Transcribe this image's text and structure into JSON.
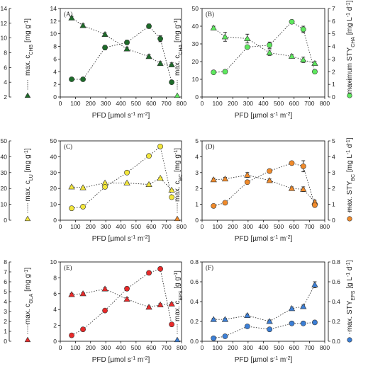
{
  "chart_data": [
    {
      "type": "scatter",
      "panel": "(A)",
      "xlabel": "PFD [µmol s-1 m-2]",
      "x_ticks": [
        0,
        100,
        200,
        300,
        400,
        500,
        600,
        700,
        800
      ],
      "xlim": [
        0,
        800
      ],
      "left_axis": {
        "label": "max. c_CHB [mg g-1]",
        "ylim": [
          0,
          14
        ],
        "ticks": [
          0,
          2,
          4,
          6,
          8,
          10,
          12,
          14
        ]
      },
      "right_axis": {
        "label": "max. STY_CHB [mg L-1 d-1]",
        "ylim": [
          2,
          14
        ],
        "ticks": [
          2,
          4,
          6,
          8,
          10,
          12,
          14
        ],
        "side": "outer-left"
      },
      "color": "#1e6b2a",
      "series": [
        {
          "axis": "left",
          "marker": "triangle",
          "x": [
            75,
            150,
            295,
            440,
            585,
            660,
            735
          ],
          "y": [
            12.5,
            11.3,
            9.9,
            7.6,
            6.4,
            5.3,
            5.1
          ],
          "err": [
            0.25,
            0.25,
            0.25,
            0.3,
            0.3,
            0.3,
            0.3
          ]
        },
        {
          "axis": "right",
          "marker": "circle",
          "x": [
            75,
            150,
            295,
            440,
            585,
            660,
            735
          ],
          "y": [
            4.4,
            4.4,
            8.7,
            9.4,
            11.6,
            9.9,
            4.0
          ],
          "err": [
            0.2,
            0.2,
            0.3,
            0.3,
            0.3,
            0.4,
            0.2
          ]
        }
      ]
    },
    {
      "type": "scatter",
      "panel": "(B)",
      "xlabel": "PFD [µmol s-1 m-2]",
      "x_ticks": [
        0,
        100,
        200,
        300,
        400,
        500,
        600,
        700,
        800
      ],
      "xlim": [
        0,
        800
      ],
      "left_axis": {
        "label": "max. c_CHA [mg g-1]",
        "ylim": [
          0,
          50
        ],
        "ticks": [
          0,
          10,
          20,
          30,
          40,
          50
        ]
      },
      "right_axis": {
        "label": "maximum STY_CHA [mg L-1 d-1]",
        "ylim": [
          0,
          7
        ],
        "ticks": [
          0,
          1,
          2,
          3,
          4,
          5,
          6,
          7
        ],
        "side": "outer-right"
      },
      "color": "#5ee85e",
      "series": [
        {
          "axis": "left",
          "marker": "triangle",
          "x": [
            75,
            150,
            295,
            440,
            585,
            660,
            735
          ],
          "y": [
            39,
            34,
            33,
            25,
            23,
            21,
            19
          ],
          "err": [
            1,
            2.5,
            2.5,
            1.5,
            1,
            1.5,
            1
          ]
        },
        {
          "axis": "right",
          "marker": "circle",
          "x": [
            75,
            150,
            295,
            440,
            585,
            660,
            735
          ],
          "y": [
            1.95,
            2.0,
            3.95,
            4.1,
            5.95,
            5.35,
            2.0
          ],
          "err": [
            0.1,
            0.1,
            0.1,
            0.25,
            0.1,
            0.25,
            0.1
          ]
        }
      ]
    },
    {
      "type": "scatter",
      "panel": "(C)",
      "xlabel": "PFD [µmol s-1 m-2]",
      "x_ticks": [
        0,
        100,
        200,
        300,
        400,
        500,
        600,
        700,
        800
      ],
      "xlim": [
        0,
        800
      ],
      "left_axis": {
        "label": "max. c_LU [mg g-1]",
        "ylim": [
          0,
          50
        ],
        "ticks": [
          0,
          10,
          20,
          30,
          40,
          50
        ]
      },
      "right_axis": {
        "label": "max. STY_LU [mg L-1 d-1]",
        "ylim": [
          0,
          50
        ],
        "ticks": [
          0,
          10,
          20,
          30,
          40,
          50
        ],
        "side": "outer-left"
      },
      "color": "#f2e63c",
      "series": [
        {
          "axis": "left",
          "marker": "triangle",
          "x": [
            75,
            150,
            295,
            440,
            585,
            660,
            735
          ],
          "y": [
            21,
            20.5,
            23.5,
            23.5,
            22.5,
            26.5,
            19
          ],
          "err": [
            0.5,
            0.5,
            0.5,
            0.5,
            0.5,
            0.5,
            0.5
          ]
        },
        {
          "axis": "right",
          "marker": "circle",
          "x": [
            75,
            150,
            295,
            440,
            585,
            660,
            735
          ],
          "y": [
            7.5,
            8.5,
            21,
            30,
            40.5,
            46.5,
            14.5
          ],
          "err": [
            0.3,
            0.3,
            0.5,
            0.5,
            0.8,
            0.8,
            0.5
          ]
        }
      ]
    },
    {
      "type": "scatter",
      "panel": "(D)",
      "xlabel": "PFD [µmol s-1 m-2]",
      "x_ticks": [
        0,
        100,
        200,
        300,
        400,
        500,
        600,
        700,
        800
      ],
      "xlim": [
        0,
        800
      ],
      "left_axis": {
        "label": "max. c_BC [mg g-1]",
        "ylim": [
          0,
          5
        ],
        "ticks": [
          0,
          1,
          2,
          3,
          4,
          5
        ]
      },
      "right_axis": {
        "label": "max. STY_BC [mg L-1 d-1]",
        "ylim": [
          0,
          5
        ],
        "ticks": [
          0,
          1,
          2,
          3,
          4,
          5
        ],
        "side": "outer-right"
      },
      "color": "#f08a2a",
      "series": [
        {
          "axis": "left",
          "marker": "triangle",
          "x": [
            75,
            150,
            295,
            440,
            585,
            660,
            735
          ],
          "y": [
            2.55,
            2.6,
            2.85,
            2.5,
            2.0,
            1.95,
            1.15
          ],
          "err": [
            0.1,
            0.1,
            0.15,
            0.1,
            0.1,
            0.15,
            0.1
          ]
        },
        {
          "axis": "right",
          "marker": "circle",
          "x": [
            75,
            150,
            295,
            440,
            585,
            660,
            735
          ],
          "y": [
            0.9,
            1.1,
            2.4,
            3.1,
            3.6,
            3.4,
            0.95
          ],
          "err": [
            0.05,
            0.05,
            0.1,
            0.1,
            0.1,
            0.35,
            0.1
          ]
        }
      ]
    },
    {
      "type": "scatter",
      "panel": "(E)",
      "xlabel": "PFD [µmol s-1 m-2]",
      "x_ticks": [
        0,
        100,
        200,
        300,
        400,
        500,
        600,
        700,
        800
      ],
      "xlim": [
        0,
        800
      ],
      "left_axis": {
        "label": "max. c_GLA [mg g-1]",
        "ylim": [
          0,
          10
        ],
        "ticks": [
          0,
          2,
          4,
          6,
          8,
          10
        ]
      },
      "right_axis": {
        "label": "max. STY_GLA [mg L-1 d-1]",
        "ylim": [
          0,
          8
        ],
        "ticks": [
          0,
          1,
          2,
          3,
          4,
          5,
          6,
          7,
          8
        ],
        "side": "outer-left"
      },
      "color": "#e82a2a",
      "series": [
        {
          "axis": "left",
          "marker": "triangle",
          "x": [
            75,
            150,
            295,
            440,
            585,
            660,
            735
          ],
          "y": [
            5.9,
            6.0,
            6.6,
            5.3,
            4.3,
            4.6,
            4.7
          ],
          "err": [
            0.15,
            0.15,
            0.15,
            0.2,
            0.15,
            0.15,
            0.15
          ]
        },
        {
          "axis": "right",
          "marker": "circle",
          "x": [
            75,
            150,
            295,
            440,
            585,
            660,
            735
          ],
          "y": [
            0.6,
            1.2,
            3.1,
            5.3,
            6.9,
            7.3,
            1.7
          ],
          "err": [
            0.05,
            0.05,
            0.1,
            0.2,
            0.15,
            0.15,
            0.1
          ]
        }
      ]
    },
    {
      "type": "scatter",
      "panel": "(F)",
      "xlabel": "PFD [µmol s-1 m-2]",
      "x_ticks": [
        0,
        100,
        200,
        300,
        400,
        500,
        600,
        700,
        800
      ],
      "xlim": [
        0,
        800
      ],
      "left_axis": {
        "label": "max. c_EPS [g g-1]",
        "ylim": [
          0,
          0.8
        ],
        "ticks": [
          0.0,
          0.2,
          0.4,
          0.6,
          0.8
        ]
      },
      "right_axis": {
        "label": "max. STY_EPS [g L-1 d-1]",
        "ylim": [
          0,
          0.8
        ],
        "ticks": [
          0.0,
          0.2,
          0.4,
          0.6,
          0.8
        ],
        "side": "outer-right"
      },
      "color": "#3c7fd6",
      "series": [
        {
          "axis": "left",
          "marker": "triangle",
          "x": [
            75,
            150,
            295,
            440,
            585,
            660,
            735
          ],
          "y": [
            0.22,
            0.22,
            0.26,
            0.2,
            0.33,
            0.35,
            0.57
          ],
          "err": [
            0.01,
            0.01,
            0.015,
            0.015,
            0.015,
            0.015,
            0.03
          ]
        },
        {
          "axis": "right",
          "marker": "circle",
          "x": [
            75,
            150,
            295,
            440,
            585,
            660,
            735
          ],
          "y": [
            0.03,
            0.05,
            0.15,
            0.12,
            0.18,
            0.18,
            0.19
          ],
          "err": [
            0.005,
            0.005,
            0.01,
            0.01,
            0.01,
            0.01,
            0.015
          ]
        }
      ]
    }
  ]
}
